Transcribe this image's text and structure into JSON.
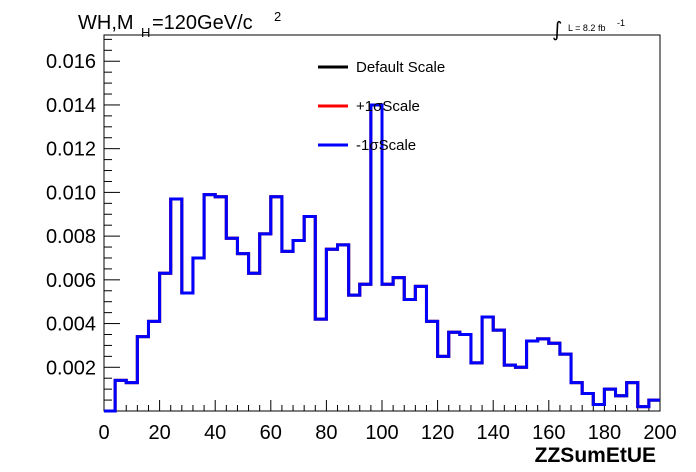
{
  "chart_data": {
    "type": "line",
    "title": "WH,M",
    "title_sub": "H",
    "title_rest": "=120GeV/c",
    "title_sup": "2",
    "lumi_label": "L = 8.2 fb",
    "lumi_sup": "-1",
    "xlabel": "ZZSumEtUE",
    "ylabel": "",
    "xlim": [
      0,
      200
    ],
    "ylim": [
      0,
      0.0172
    ],
    "x_ticks": [
      0,
      20,
      40,
      60,
      80,
      100,
      120,
      140,
      160,
      180,
      200
    ],
    "x_tick_labels": [
      "0",
      "20",
      "40",
      "60",
      "80",
      "100",
      "120",
      "140",
      "160",
      "180",
      "200"
    ],
    "y_ticks": [
      0.002,
      0.004,
      0.006,
      0.008,
      0.01,
      0.012,
      0.014,
      0.016
    ],
    "y_tick_labels": [
      "0.002",
      "0.004",
      "0.006",
      "0.008",
      "0.010",
      "0.012",
      "0.014",
      "0.016"
    ],
    "legend_position": "top-center",
    "bin_width": 4,
    "x": [
      0,
      4,
      8,
      12,
      16,
      20,
      24,
      28,
      32,
      36,
      40,
      44,
      48,
      52,
      56,
      60,
      64,
      68,
      72,
      76,
      80,
      84,
      88,
      92,
      96,
      100,
      104,
      108,
      112,
      116,
      120,
      124,
      128,
      132,
      136,
      140,
      144,
      148,
      152,
      156,
      160,
      164,
      168,
      172,
      176,
      180,
      184,
      188,
      192,
      196
    ],
    "series": [
      {
        "name": "Default Scale",
        "color": "#000000",
        "values": [
          0.0,
          0.0014,
          0.0013,
          0.0034,
          0.0041,
          0.0063,
          0.0097,
          0.0054,
          0.007,
          0.0099,
          0.0098,
          0.0079,
          0.0072,
          0.0063,
          0.0081,
          0.0098,
          0.0073,
          0.0078,
          0.0089,
          0.0042,
          0.0074,
          0.0076,
          0.0053,
          0.0058,
          0.014,
          0.0058,
          0.0061,
          0.0051,
          0.0057,
          0.0041,
          0.0025,
          0.0036,
          0.0035,
          0.0022,
          0.0043,
          0.0037,
          0.0021,
          0.002,
          0.0032,
          0.0033,
          0.0031,
          0.0026,
          0.0013,
          0.0008,
          0.0003,
          0.001,
          0.0007,
          0.0013,
          0.0002,
          0.0005
        ]
      },
      {
        "name": "+1σScale",
        "color": "#ff0000",
        "values": [
          0.0,
          0.0014,
          0.0013,
          0.0034,
          0.0041,
          0.0063,
          0.0097,
          0.0054,
          0.007,
          0.0099,
          0.0098,
          0.0079,
          0.0072,
          0.0063,
          0.0081,
          0.0098,
          0.0073,
          0.0078,
          0.0089,
          0.0042,
          0.0074,
          0.0076,
          0.0053,
          0.0058,
          0.014,
          0.0058,
          0.0061,
          0.0051,
          0.0057,
          0.0041,
          0.0025,
          0.0036,
          0.0035,
          0.0022,
          0.0043,
          0.0037,
          0.0021,
          0.002,
          0.0032,
          0.0033,
          0.0031,
          0.0026,
          0.0013,
          0.0008,
          0.0003,
          0.001,
          0.0007,
          0.0013,
          0.0002,
          0.0005
        ]
      },
      {
        "name": "-1σScale",
        "color": "#0000ff",
        "values": [
          0.0,
          0.0014,
          0.0013,
          0.0034,
          0.0041,
          0.0063,
          0.0097,
          0.0054,
          0.007,
          0.0099,
          0.0098,
          0.0079,
          0.0072,
          0.0063,
          0.0081,
          0.0098,
          0.0073,
          0.0078,
          0.0089,
          0.0042,
          0.0074,
          0.0076,
          0.0053,
          0.0058,
          0.014,
          0.0058,
          0.0061,
          0.0051,
          0.0057,
          0.0041,
          0.0025,
          0.0036,
          0.0035,
          0.0022,
          0.0043,
          0.0037,
          0.0021,
          0.002,
          0.0032,
          0.0033,
          0.0031,
          0.0026,
          0.0013,
          0.0008,
          0.0003,
          0.001,
          0.0007,
          0.0013,
          0.0002,
          0.0005
        ]
      }
    ]
  }
}
